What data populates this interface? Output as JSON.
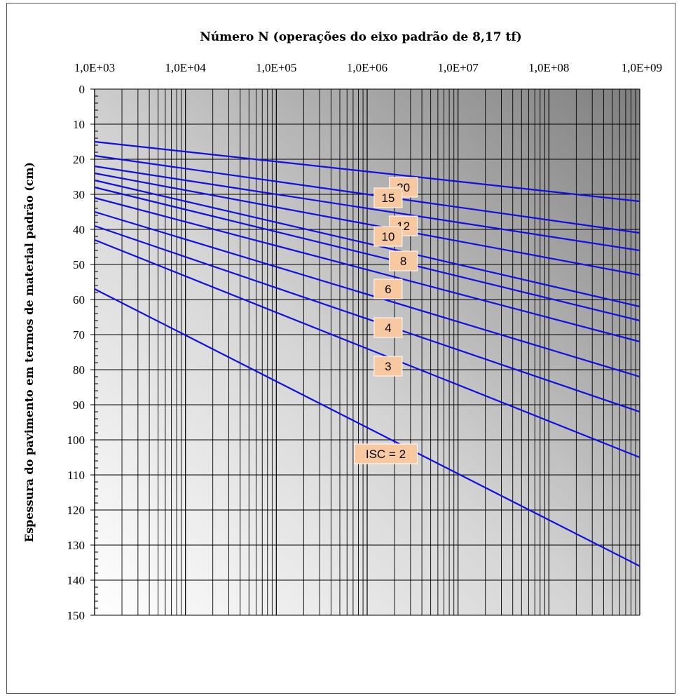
{
  "chart_data": {
    "type": "line",
    "title": "Número N (operações do eixo padrão de 8,17 tf)",
    "xlabel": "Número N (operações do eixo padrão de 8,17 tf)",
    "ylabel": "Espessura do pavimento em termos de material padrão (cm)",
    "x_scale": "log",
    "xlim": [
      1000,
      1000000000
    ],
    "ylim": [
      0,
      150
    ],
    "y_inverted": true,
    "x_axis_position": "top",
    "x_tick_labels": [
      "1,0E+03",
      "1,0E+04",
      "1,0E+05",
      "1,0E+06",
      "1,0E+07",
      "1,0E+08",
      "1,0E+09"
    ],
    "y_ticks": [
      0,
      10,
      20,
      30,
      40,
      50,
      60,
      70,
      80,
      90,
      100,
      110,
      120,
      130,
      140,
      150
    ],
    "grid": true,
    "legend": "none",
    "line_color": "#1010e0",
    "label_box_color": "#f8c9a0",
    "series": [
      {
        "label": "20",
        "x": [
          1000,
          1000000000
        ],
        "y": [
          15,
          32
        ],
        "label_at": [
          2500000,
          28
        ]
      },
      {
        "label": "15",
        "x": [
          1000,
          1000000000
        ],
        "y": [
          19,
          41
        ],
        "label_at": [
          1700000,
          31
        ]
      },
      {
        "label": "12",
        "x": [
          1000,
          1000000000
        ],
        "y": [
          22,
          46
        ],
        "label_at": [
          2500000,
          39
        ]
      },
      {
        "label": "10",
        "x": [
          1000,
          1000000000
        ],
        "y": [
          24,
          53
        ],
        "label_at": [
          1700000,
          42
        ]
      },
      {
        "label": "8",
        "x": [
          1000,
          1000000000
        ],
        "y": [
          26,
          62
        ],
        "label_at": [
          2500000,
          49
        ]
      },
      {
        "label": "",
        "x": [
          1000,
          1000000000
        ],
        "y": [
          28,
          66
        ]
      },
      {
        "label": "6",
        "x": [
          1000,
          1000000000
        ],
        "y": [
          31,
          72
        ],
        "label_at": [
          1700000,
          57
        ]
      },
      {
        "label": "",
        "x": [
          1000,
          1000000000
        ],
        "y": [
          35,
          82
        ]
      },
      {
        "label": "4",
        "x": [
          1000,
          1000000000
        ],
        "y": [
          39,
          92
        ],
        "label_at": [
          1700000,
          68
        ]
      },
      {
        "label": "3",
        "x": [
          1000,
          1000000000
        ],
        "y": [
          43,
          105
        ],
        "label_at": [
          1700000,
          79
        ]
      },
      {
        "label": "ISC = 2",
        "x": [
          1000,
          1000000000
        ],
        "y": [
          57,
          136
        ],
        "label_at": [
          1600000,
          104
        ]
      }
    ]
  }
}
